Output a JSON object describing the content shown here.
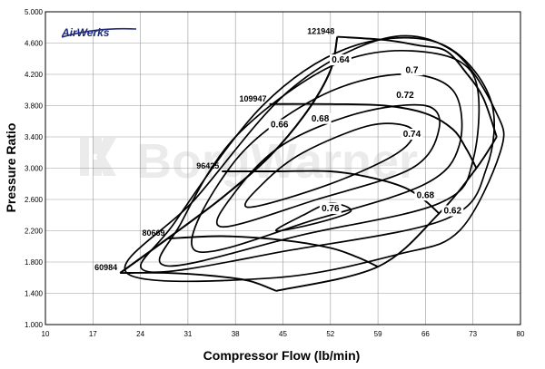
{
  "brand": {
    "logo": "AirWerks",
    "watermark": "BorgWarner"
  },
  "chart_data": {
    "type": "line",
    "title": "",
    "xlabel": "Compressor Flow (lb/min)",
    "ylabel": "Pressure Ratio",
    "xlim": [
      10,
      80
    ],
    "ylim": [
      1.0,
      5.0
    ],
    "xticks": [
      "10",
      "17",
      "24",
      "31",
      "38",
      "45",
      "52",
      "59",
      "66",
      "73",
      "80"
    ],
    "yticks": [
      "1.000",
      "1.400",
      "1.800",
      "2.200",
      "2.600",
      "3.000",
      "3.400",
      "3.800",
      "4.200",
      "4.600",
      "5.000"
    ],
    "grid": true,
    "surge_line": [
      [
        21.0,
        1.66
      ],
      [
        28.0,
        2.1
      ],
      [
        36.0,
        2.62
      ],
      [
        43.0,
        3.15
      ],
      [
        48.5,
        3.72
      ],
      [
        52.0,
        4.25
      ],
      [
        53.0,
        4.68
      ]
    ],
    "speed_lines": [
      {
        "name": "60984",
        "points": [
          [
            21.0,
            1.66
          ],
          [
            28.0,
            1.66
          ],
          [
            35.0,
            1.62
          ],
          [
            40.0,
            1.56
          ],
          [
            44.0,
            1.43
          ]
        ]
      },
      {
        "name": "80669",
        "points": [
          [
            28.0,
            2.1
          ],
          [
            36.0,
            2.13
          ],
          [
            45.0,
            2.08
          ],
          [
            52.0,
            1.98
          ],
          [
            56.0,
            1.86
          ],
          [
            59.0,
            1.74
          ]
        ]
      },
      {
        "name": "96425",
        "points": [
          [
            36.0,
            2.96
          ],
          [
            44.0,
            2.96
          ],
          [
            52.0,
            2.96
          ],
          [
            58.0,
            2.88
          ],
          [
            63.0,
            2.75
          ],
          [
            66.0,
            2.58
          ],
          [
            68.0,
            2.42
          ]
        ]
      },
      {
        "name": "109947",
        "points": [
          [
            43.0,
            3.82
          ],
          [
            52.0,
            3.82
          ],
          [
            60.0,
            3.8
          ],
          [
            66.0,
            3.7
          ],
          [
            70.0,
            3.5
          ],
          [
            72.0,
            3.25
          ],
          [
            73.5,
            3.0
          ]
        ]
      },
      {
        "name": "121948",
        "points": [
          [
            53.0,
            4.68
          ],
          [
            60.0,
            4.64
          ],
          [
            65.0,
            4.57
          ],
          [
            69.0,
            4.5
          ],
          [
            72.0,
            4.22
          ],
          [
            74.5,
            3.9
          ],
          [
            76.5,
            3.4
          ]
        ]
      }
    ],
    "efficiency_islands": [
      {
        "name": "0.76",
        "points": [
          [
            44,
            2.2
          ],
          [
            50,
            2.3
          ],
          [
            55,
            2.45
          ],
          [
            52,
            2.55
          ],
          [
            48,
            2.4
          ]
        ]
      },
      {
        "name": "0.74",
        "points": [
          [
            40,
            2.5
          ],
          [
            52,
            2.8
          ],
          [
            62,
            3.2
          ],
          [
            64,
            3.5
          ],
          [
            58,
            3.55
          ],
          [
            48,
            3.2
          ],
          [
            42,
            2.8
          ]
        ]
      },
      {
        "name": "0.72",
        "points": [
          [
            36,
            2.25
          ],
          [
            50,
            2.6
          ],
          [
            64,
            3.0
          ],
          [
            68,
            3.5
          ],
          [
            66,
            3.8
          ],
          [
            56,
            3.7
          ],
          [
            45,
            3.3
          ],
          [
            38,
            2.7
          ]
        ]
      },
      {
        "name": "0.7",
        "points": [
          [
            32,
            1.95
          ],
          [
            50,
            2.35
          ],
          [
            66,
            2.8
          ],
          [
            71,
            3.3
          ],
          [
            70,
            4.0
          ],
          [
            62,
            4.2
          ],
          [
            50,
            3.9
          ],
          [
            38,
            3.1
          ]
        ]
      },
      {
        "name": "0.68",
        "points": [
          [
            28,
            1.75
          ],
          [
            48,
            2.15
          ],
          [
            68,
            2.55
          ],
          [
            73,
            3.1
          ],
          [
            73,
            4.2
          ],
          [
            64,
            4.5
          ],
          [
            52,
            4.3
          ],
          [
            38,
            3.4
          ],
          [
            30,
            2.3
          ]
        ]
      },
      {
        "name": "0.66",
        "points": [
          [
            25,
            1.68
          ],
          [
            46,
            1.95
          ],
          [
            69,
            2.35
          ],
          [
            75,
            3.0
          ],
          [
            75.5,
            3.9
          ],
          [
            68,
            4.6
          ],
          [
            55,
            4.55
          ],
          [
            42,
            3.8
          ],
          [
            29,
            2.3
          ]
        ]
      },
      {
        "name": "0.64",
        "points": [
          [
            22,
            1.66
          ],
          [
            44,
            1.6
          ],
          [
            62,
            1.9
          ],
          [
            71,
            2.2
          ],
          [
            77,
            3.2
          ],
          [
            76.5,
            3.7
          ],
          [
            70,
            4.5
          ],
          [
            60,
            4.66
          ],
          [
            46,
            4.0
          ],
          [
            32,
            2.6
          ]
        ]
      }
    ],
    "label_positions": [
      {
        "text": "60984",
        "x": 21.0,
        "y": 1.66
      },
      {
        "text": "80669",
        "x": 28.0,
        "y": 2.1
      },
      {
        "text": "96425",
        "x": 36.0,
        "y": 2.96
      },
      {
        "text": "109947",
        "x": 43.0,
        "y": 3.82
      },
      {
        "text": "121948",
        "x": 53.0,
        "y": 4.68
      }
    ],
    "efficiency_label_positions": [
      {
        "text": "0.64",
        "x": 53.5,
        "y": 4.35
      },
      {
        "text": "0.7",
        "x": 64.0,
        "y": 4.22
      },
      {
        "text": "0.72",
        "x": 63.0,
        "y": 3.9
      },
      {
        "text": "0.66",
        "x": 44.5,
        "y": 3.52
      },
      {
        "text": "0.68",
        "x": 50.5,
        "y": 3.6
      },
      {
        "text": "0.74",
        "x": 64.0,
        "y": 3.4
      },
      {
        "text": "0.68",
        "x": 66.0,
        "y": 2.62
      },
      {
        "text": "0.62",
        "x": 70.0,
        "y": 2.42
      },
      {
        "text": "0.76",
        "x": 52.0,
        "y": 2.45
      }
    ]
  }
}
